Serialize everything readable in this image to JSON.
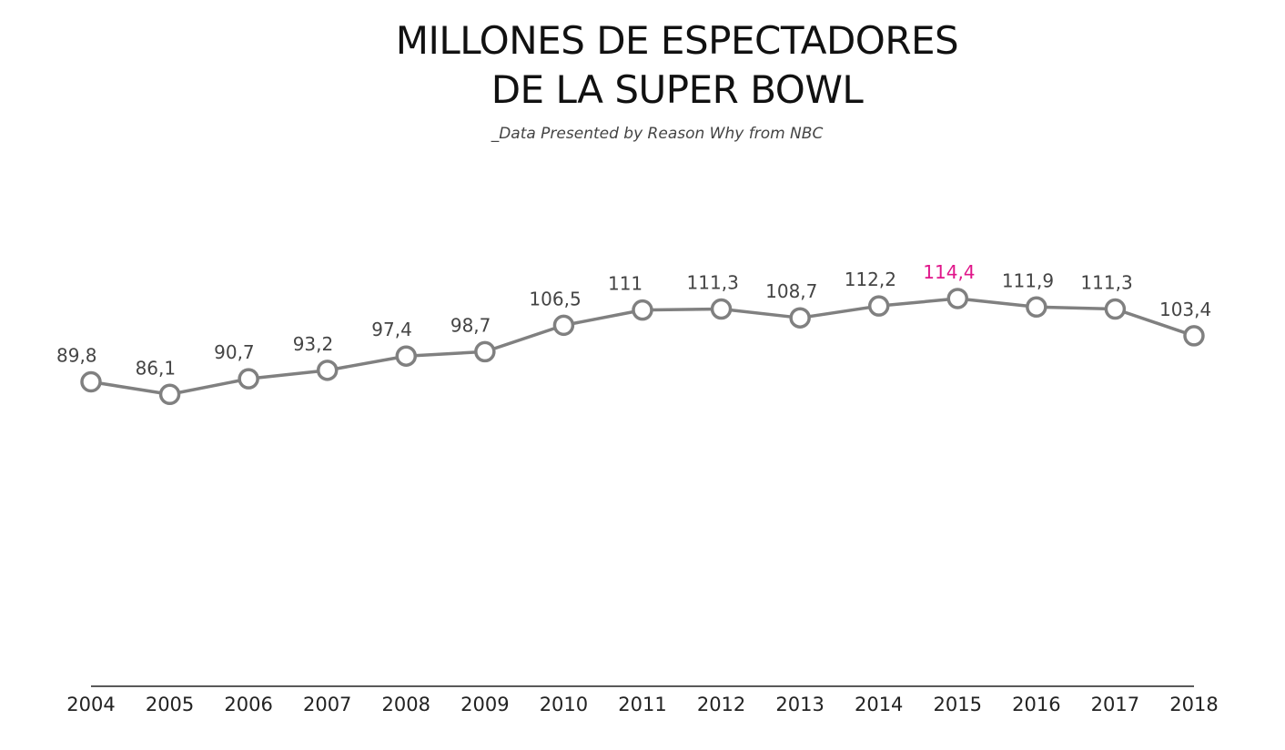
{
  "chart_data": {
    "type": "line",
    "title_lines": [
      "MILLONES DE ESPECTADORES",
      "DE LA SUPER BOWL"
    ],
    "subtitle": "_Data Presented by Reason Why from NBC",
    "x": [
      "2004",
      "2005",
      "2006",
      "2007",
      "2008",
      "2009",
      "2010",
      "2011",
      "2012",
      "2013",
      "2014",
      "2015",
      "2016",
      "2017",
      "2018"
    ],
    "values": [
      89.8,
      86.1,
      90.7,
      93.2,
      97.4,
      98.7,
      106.5,
      111,
      111.3,
      108.7,
      112.2,
      114.4,
      111.9,
      111.3,
      103.4
    ],
    "data_labels": [
      "89,8",
      "86,1",
      "90,7",
      "93,2",
      "97,4",
      "98,7",
      "106,5",
      "111",
      "111,3",
      "108,7",
      "112,2",
      "114,4",
      "111,9",
      "111,3",
      "103,4"
    ],
    "highlight_label": "114,4",
    "colors": {
      "line": "#808080",
      "marker_fill": "#ffffff",
      "label": "#444444",
      "highlight": "#e0168a",
      "axis": "#222222"
    },
    "grid": false
  }
}
